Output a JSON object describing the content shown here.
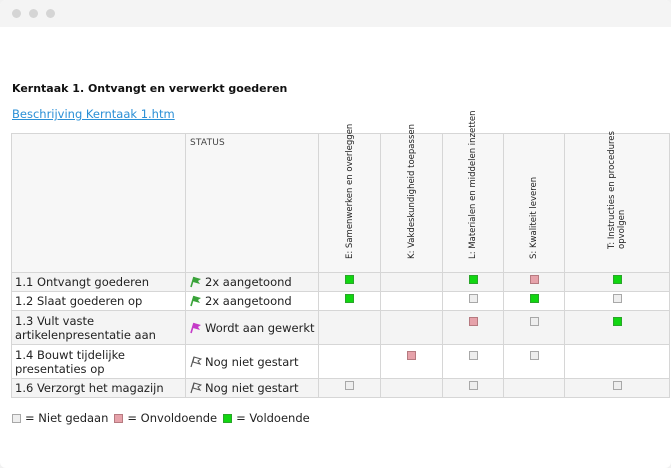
{
  "window": {
    "controls": [
      "close",
      "minimize",
      "maximize"
    ]
  },
  "page": {
    "heading": "Kerntaak 1. Ontvangt en verwerkt goederen",
    "link": "Beschrijving Kerntaak 1.htm"
  },
  "table": {
    "status_header": "STATUS",
    "columns": [
      [
        "E: Samenwerken en overleggen"
      ],
      [
        "K: Vakdeskundigheid toepassen"
      ],
      [
        "L: Materialen en middelen inzetten"
      ],
      [
        "S: Kwaliteit leveren"
      ],
      [
        "T: Instructies en procedures",
        "opvolgen"
      ]
    ],
    "rows": [
      {
        "name": "1.1 Ontvangt goederen",
        "status": "2x aangetoond",
        "icon": "flag-green-icon",
        "cells": [
          "green",
          "",
          "green",
          "red",
          "green"
        ]
      },
      {
        "name": "1.2 Slaat goederen op",
        "status": "2x aangetoond",
        "icon": "flag-green-icon",
        "cells": [
          "green",
          "",
          "gray",
          "green",
          "gray"
        ]
      },
      {
        "name": "1.3 Vult vaste artikelenpresentatie aan",
        "status": "Wordt aan gewerkt",
        "icon": "flag-magenta-icon",
        "cells": [
          "",
          "",
          "red",
          "gray",
          "green"
        ]
      },
      {
        "name": "1.4 Bouwt tijdelijke presentaties op",
        "status": "Nog niet gestart",
        "icon": "flag-outline-icon",
        "cells": [
          "",
          "red",
          "gray",
          "gray",
          ""
        ]
      },
      {
        "name": "1.6 Verzorgt het magazijn",
        "status": "Nog niet gestart",
        "icon": "flag-outline-icon",
        "cells": [
          "gray",
          "",
          "gray",
          "",
          "gray"
        ]
      }
    ]
  },
  "legend": [
    {
      "color": "gray",
      "label": "= Niet gedaan"
    },
    {
      "color": "red",
      "label": "= Onvoldoende"
    },
    {
      "color": "green",
      "label": "= Voldoende"
    }
  ],
  "colors": {
    "green": "#11d611",
    "red": "#e6a2aa",
    "gray": "#eeeeee",
    "link": "#2a8fd6",
    "flag_green": "#3aa33a",
    "flag_magenta": "#c53cc8"
  }
}
